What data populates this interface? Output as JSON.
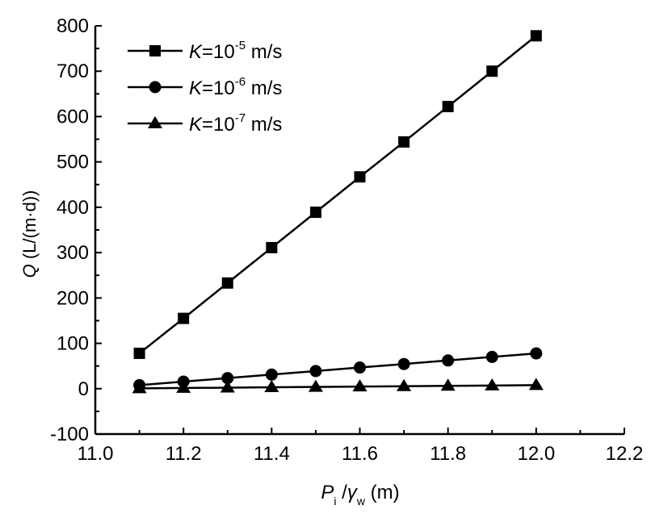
{
  "chart_data": {
    "type": "line",
    "title": "",
    "xlabel": {
      "main": "P",
      "sub1": "i",
      "slash": " /",
      "gamma": "γ",
      "sub2": "w",
      "unit": " (m)"
    },
    "ylabel": {
      "main": "Q",
      "unit": " (L/(m·d))"
    },
    "xlim": [
      11.0,
      12.2
    ],
    "ylim": [
      -100,
      800
    ],
    "xticks": [
      "11.0",
      "11.2",
      "11.4",
      "11.6",
      "11.8",
      "12.0",
      "12.2"
    ],
    "yticks": [
      "-100",
      "0",
      "100",
      "200",
      "300",
      "400",
      "500",
      "600",
      "700",
      "800"
    ],
    "grid": false,
    "legend_position": "top-left",
    "x": [
      11.1,
      11.2,
      11.3,
      11.4,
      11.5,
      11.6,
      11.7,
      11.8,
      11.9,
      12.0
    ],
    "series": [
      {
        "name": "K=10-5 m/s",
        "label_k": "K",
        "label_eq": "=10",
        "label_exp": "-5",
        "label_unit": " m/s",
        "marker": "square",
        "values": [
          78,
          155,
          233,
          311,
          389,
          467,
          544,
          622,
          700,
          778
        ]
      },
      {
        "name": "K=10-6 m/s",
        "label_k": "K",
        "label_eq": "=10",
        "label_exp": "-6",
        "label_unit": " m/s",
        "marker": "circle",
        "values": [
          7.8,
          15.6,
          23.3,
          31.1,
          38.9,
          46.7,
          54.4,
          62.2,
          70.0,
          77.8
        ]
      },
      {
        "name": "K=10-7 m/s",
        "label_k": "K",
        "label_eq": "=10",
        "label_exp": "-7",
        "label_unit": " m/s",
        "marker": "triangle",
        "values": [
          0.78,
          1.56,
          2.33,
          3.11,
          3.89,
          4.67,
          5.44,
          6.22,
          7.0,
          7.78
        ]
      }
    ]
  }
}
